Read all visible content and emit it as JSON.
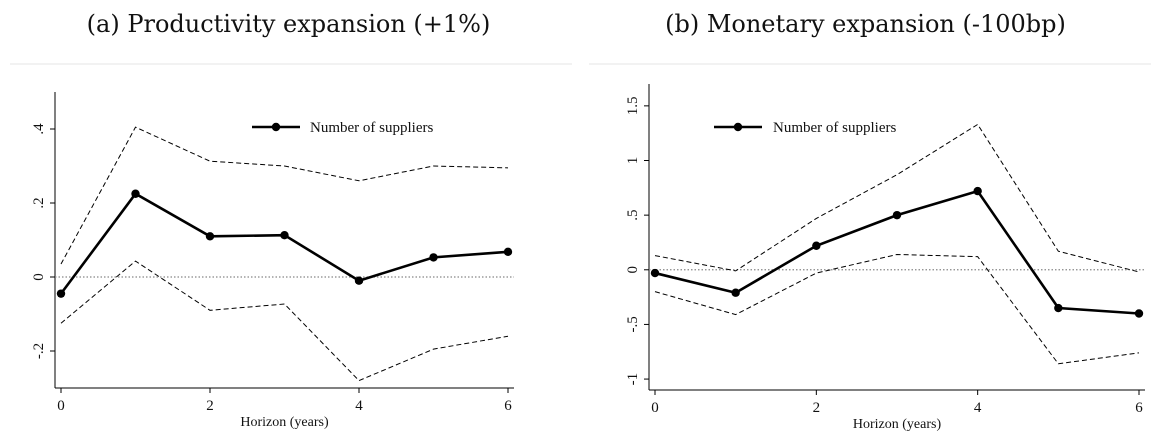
{
  "chart_data": [
    {
      "type": "line",
      "title": "(a) Productivity expansion (+1%)",
      "xlabel": "Horizon (years)",
      "ylabel": "",
      "xlim": [
        0,
        6
      ],
      "ylim": [
        -0.3,
        0.5
      ],
      "x_ticks": [
        0,
        2,
        4,
        6
      ],
      "x_tick_labels": [
        "0",
        "2",
        "4",
        "6"
      ],
      "y_ticks": [
        -0.2,
        0,
        0.2,
        0.4
      ],
      "y_tick_labels": [
        "-.2",
        "0",
        ".2",
        ".4"
      ],
      "zero_line": true,
      "grid": false,
      "legend": "top-right",
      "x": [
        0,
        1,
        2,
        3,
        4,
        5,
        6
      ],
      "series": [
        {
          "name": "Number of suppliers",
          "style": "solid-markers",
          "values": [
            -0.045,
            0.225,
            0.11,
            0.113,
            -0.01,
            0.053,
            0.068
          ]
        },
        {
          "style": "dashed",
          "values": [
            0.035,
            0.405,
            0.313,
            0.3,
            0.26,
            0.3,
            0.295
          ]
        },
        {
          "style": "dashed",
          "values": [
            -0.125,
            0.043,
            -0.09,
            -0.073,
            -0.28,
            -0.195,
            -0.16
          ]
        }
      ]
    },
    {
      "type": "line",
      "title": "(b) Monetary expansion (-100bp)",
      "xlabel": "Horizon (years)",
      "ylabel": "",
      "xlim": [
        0,
        6
      ],
      "ylim": [
        -1.1,
        1.7
      ],
      "x_ticks": [
        0,
        2,
        4,
        6
      ],
      "x_tick_labels": [
        "0",
        "2",
        "4",
        "6"
      ],
      "y_ticks": [
        -1,
        -0.5,
        0,
        0.5,
        1,
        1.5
      ],
      "y_tick_labels": [
        "-1",
        "-.5",
        "0",
        ".5",
        "1",
        "1.5"
      ],
      "zero_line": true,
      "grid": false,
      "legend": "top-left",
      "x": [
        0,
        1,
        2,
        3,
        4,
        5,
        6
      ],
      "series": [
        {
          "name": "Number of suppliers",
          "style": "solid-markers",
          "values": [
            -0.03,
            -0.21,
            0.22,
            0.5,
            0.72,
            -0.35,
            -0.4
          ]
        },
        {
          "style": "dashed",
          "values": [
            0.13,
            -0.01,
            0.47,
            0.87,
            1.33,
            0.17,
            -0.02
          ]
        },
        {
          "style": "dashed",
          "values": [
            -0.2,
            -0.41,
            -0.03,
            0.14,
            0.12,
            -0.86,
            -0.76
          ]
        }
      ]
    }
  ]
}
